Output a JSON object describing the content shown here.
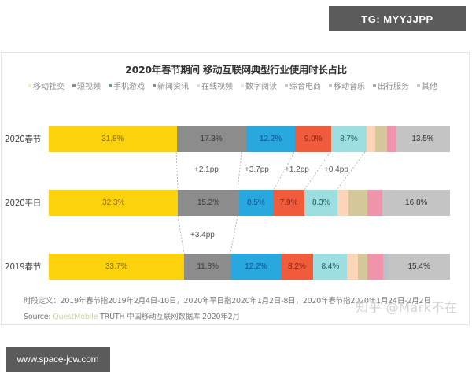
{
  "badges": {
    "top_right": "TG: MYYJJPP",
    "bottom_left": "www.space-jcw.com"
  },
  "chart_data": {
    "type": "bar",
    "orientation": "horizontal-stacked-100",
    "title": "2020年春节期间 移动互联网典型行业使用时长占比",
    "legend_position": "top",
    "categories": [
      "2020春节",
      "2020平日",
      "2019春节"
    ],
    "series": [
      {
        "name": "移动社交",
        "color": "#fcd20d",
        "values": [
          31.8,
          32.3,
          33.7
        ]
      },
      {
        "name": "短视频",
        "color": "#8c8c8c",
        "values": [
          17.3,
          15.2,
          11.8
        ]
      },
      {
        "name": "手机游戏",
        "color": "#29a8e0",
        "values": [
          12.2,
          8.5,
          12.2
        ]
      },
      {
        "name": "新闻资讯",
        "color": "#ef5b3b",
        "values": [
          9.0,
          7.9,
          8.2
        ]
      },
      {
        "name": "在线视频",
        "color": "#9ddfe0",
        "values": [
          8.7,
          8.3,
          8.4
        ]
      },
      {
        "name": "数字阅读",
        "color": "#fcd4b8",
        "values": [
          2.3,
          2.6,
          2.6
        ]
      },
      {
        "name": "综合电商",
        "color": "#d4c89a",
        "values": [
          2.8,
          4.7,
          2.5
        ]
      },
      {
        "name": "移动音乐",
        "color": "#ef94ab",
        "values": [
          2.2,
          3.9,
          3.9
        ]
      },
      {
        "name": "出行服务",
        "color": "#b8c0c8",
        "values": [
          0.0,
          0.0,
          1.2
        ]
      },
      {
        "name": "其他",
        "color": "#c4c4c4",
        "values": [
          13.5,
          16.8,
          15.4
        ]
      }
    ],
    "data_labels": {
      "2020春节": [
        "31.8%",
        "17.3%",
        "12.2%",
        "9.0%",
        "8.7%",
        "",
        "",
        "",
        "",
        "13.5%"
      ],
      "2020平日": [
        "32.3%",
        "15.2%",
        "8.5%",
        "7.9%",
        "8.3%",
        "",
        "",
        "",
        "",
        "16.8%"
      ],
      "2019春节": [
        "33.7%",
        "11.8%",
        "12.2%",
        "8.2%",
        "8.4%",
        "",
        "",
        "",
        "",
        "15.4%"
      ]
    },
    "annotations": [
      {
        "between": [
          "2020春节",
          "2020平日"
        ],
        "series": "短视频",
        "text": "+2.1pp"
      },
      {
        "between": [
          "2020春节",
          "2020平日"
        ],
        "series": "手机游戏",
        "text": "+3.7pp"
      },
      {
        "between": [
          "2020春节",
          "2020平日"
        ],
        "series": "新闻资讯",
        "text": "+1.2pp"
      },
      {
        "between": [
          "2020春节",
          "2020平日"
        ],
        "series": "在线视频",
        "text": "+0.4pp"
      },
      {
        "between": [
          "2020平日",
          "2019春节"
        ],
        "series": "短视频",
        "text": "+3.4pp"
      }
    ],
    "xlabel": "",
    "ylabel": "",
    "xlim": [
      0,
      100
    ],
    "grid": false
  },
  "legend": [
    {
      "label": "移动社交",
      "color": "#f3eec8"
    },
    {
      "label": "短视频",
      "color": "#8c8c8c"
    },
    {
      "label": "手机游戏",
      "color": "#6a9a8a"
    },
    {
      "label": "新闻资讯",
      "color": "#8a8a8a"
    },
    {
      "label": "在线视频",
      "color": "#d8dfe6"
    },
    {
      "label": "数字阅读",
      "color": "#e8e8e8"
    },
    {
      "label": "综合电商",
      "color": "#c0c8c8"
    },
    {
      "label": "移动音乐",
      "color": "#c4c4c4"
    },
    {
      "label": "出行服务",
      "color": "#a8a8a8"
    },
    {
      "label": "其他",
      "color": "#c8c8c8"
    }
  ],
  "footnotes": {
    "definition": "时段定义：2019年春节指2019年2月4日-10日，2020年平日指2020年1月2日-8日，2020年春节指2020年1月24日-2月2日",
    "source_label": "Source:",
    "source_brand": "QuestMobile",
    "source_rest": "TRUTH 中国移动互联网数据库 2020年2月"
  },
  "watermark": "知乎 @Mark不在"
}
